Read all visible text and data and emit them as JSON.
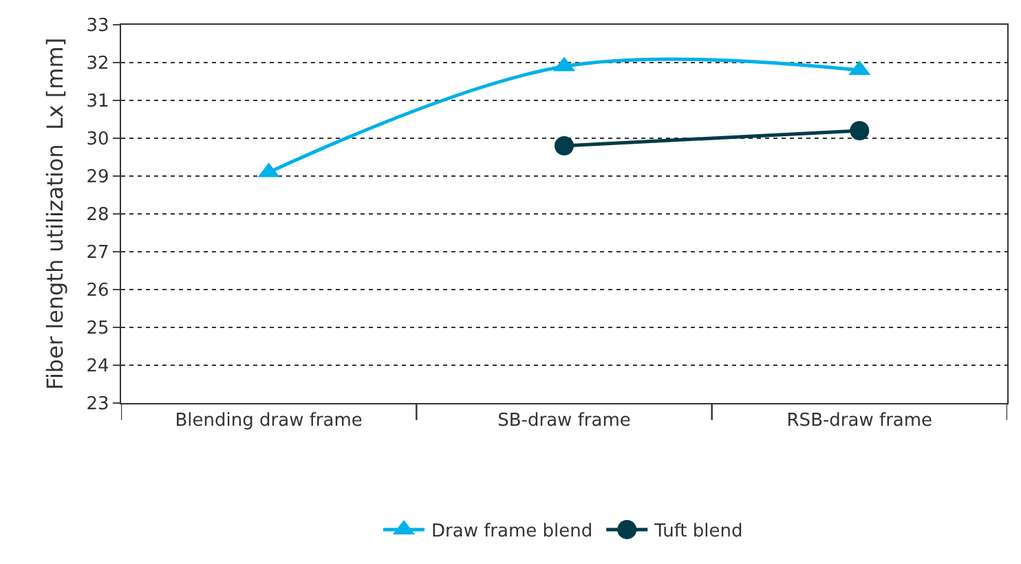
{
  "chart_data": {
    "type": "line",
    "ylabel": "Fiber length utilization  Lx [mm]",
    "categories": [
      "Blending draw frame",
      "SB-draw frame",
      "RSB-draw frame"
    ],
    "series": [
      {
        "name": "Draw frame blend",
        "color": "#00b0e8",
        "values": [
          29.1,
          31.9,
          31.8
        ],
        "marker": "triangle"
      },
      {
        "name": "Tuft blend",
        "color": "#003b49",
        "values": [
          null,
          29.8,
          30.2
        ],
        "marker": "circle"
      }
    ],
    "ylim": [
      23,
      33
    ],
    "yticks": [
      23,
      24,
      25,
      26,
      27,
      28,
      29,
      30,
      31,
      32,
      33
    ],
    "grid": "y",
    "legend": "bottom",
    "line_style": "solid"
  }
}
